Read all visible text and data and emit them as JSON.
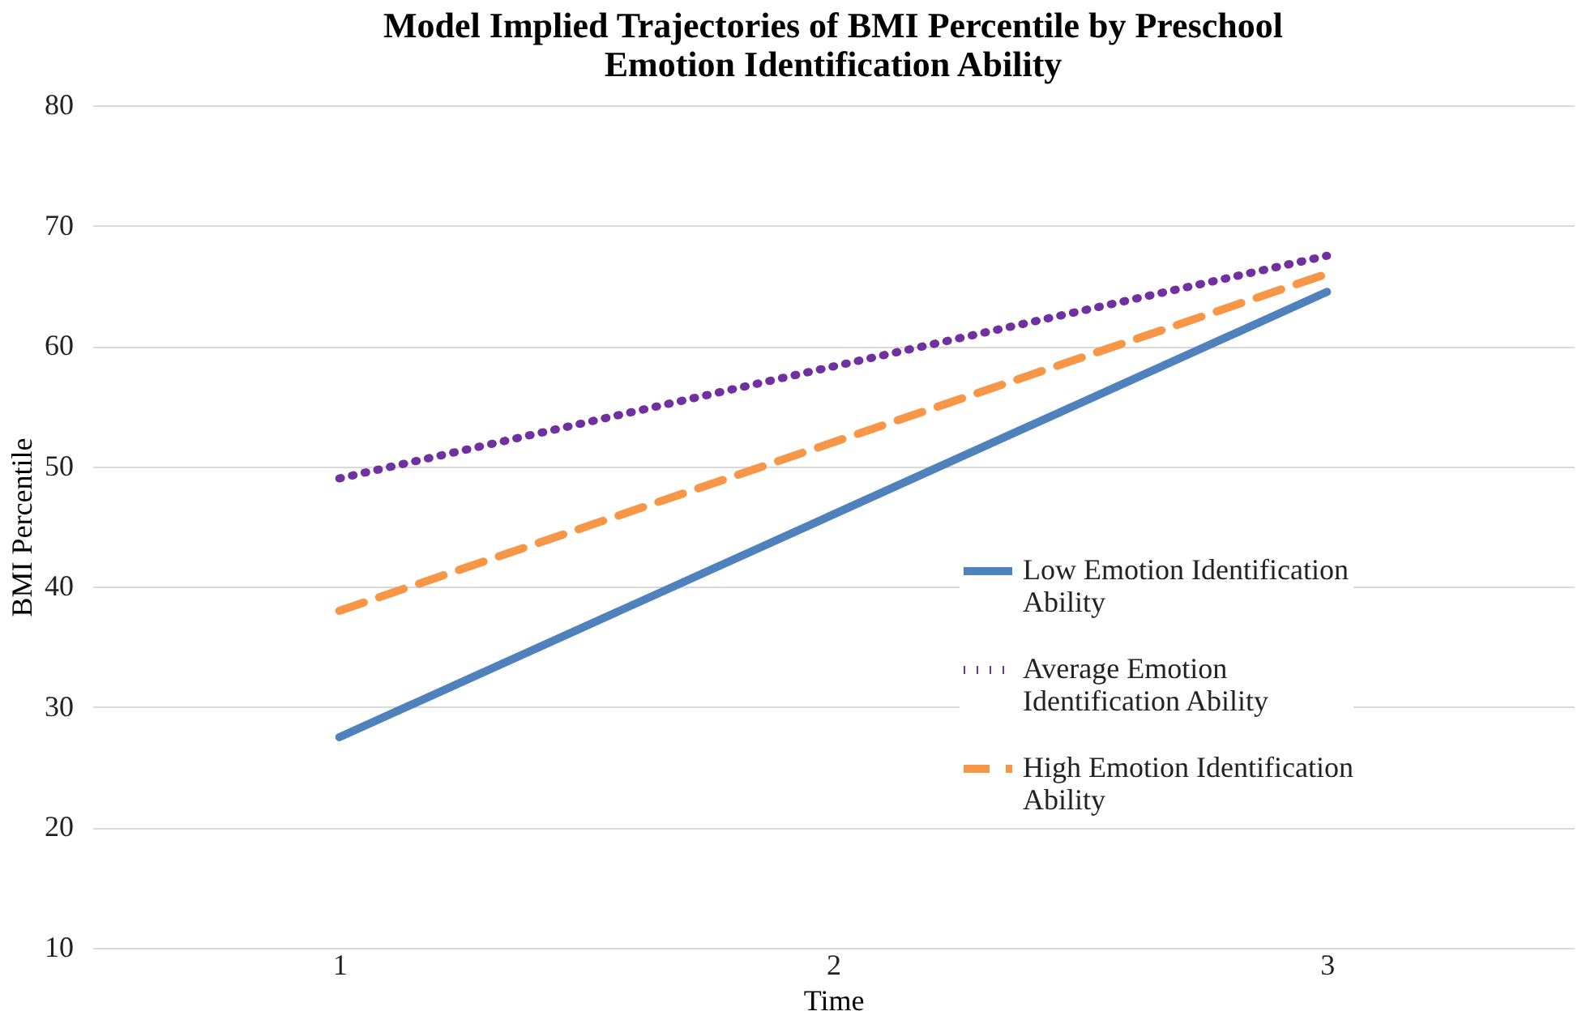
{
  "chart_data": {
    "type": "line",
    "title": "Model Implied Trajectories of BMI Percentile by Preschool Emotion Identification Ability",
    "xlabel": "Time",
    "ylabel": "BMI Percentile",
    "categories": [
      "1",
      "2",
      "3"
    ],
    "ylim": [
      10,
      80
    ],
    "yticks": [
      10,
      20,
      30,
      40,
      50,
      60,
      70,
      80
    ],
    "grid": "y",
    "legend": "right",
    "marker": "none",
    "series": [
      {
        "name": "Low Emotion Identification Ability",
        "color": "#4f81bd",
        "line_style": "solid",
        "values": [
          27.5,
          46,
          64.5
        ]
      },
      {
        "name": "Average Emotion Identification Ability",
        "color": "#7030a0",
        "line_style": "dotted",
        "values": [
          49,
          58.3,
          67.5
        ]
      },
      {
        "name": "High Emotion Identification Ability",
        "color": "#f79646",
        "line_style": "dashed",
        "values": [
          38,
          52,
          66
        ]
      }
    ]
  }
}
